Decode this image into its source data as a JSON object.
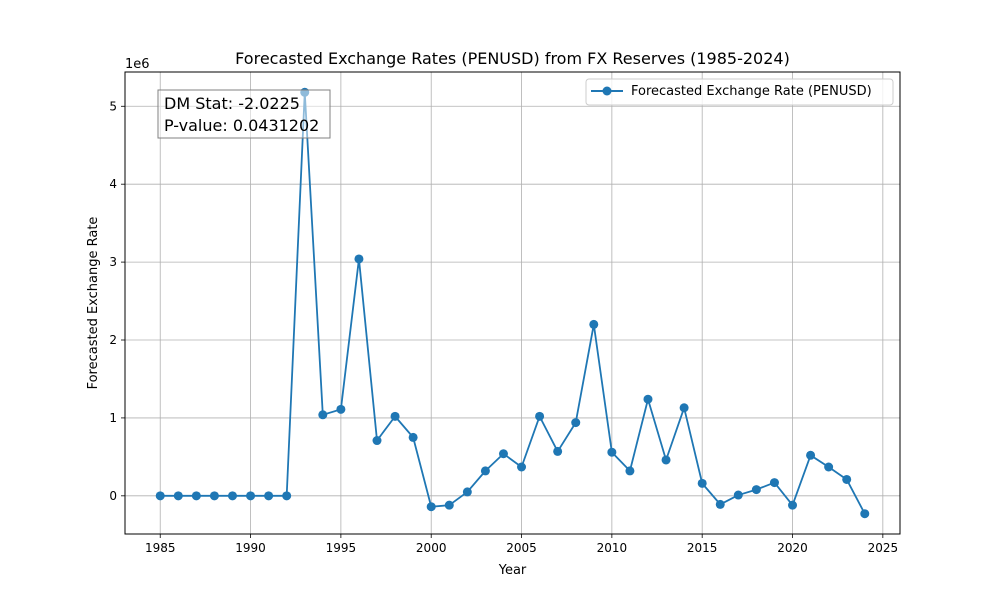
{
  "chart_data": {
    "type": "line",
    "title": "Forecasted Exchange Rates (PENUSD) from FX Reserves (1985-2024)",
    "xlabel": "Year",
    "ylabel": "Forecasted Exchange Rate",
    "y_offset_label": "1e6",
    "y_scale_factor": 1000000,
    "xlim": [
      1983.05,
      2025.95
    ],
    "ylim": [
      -490000,
      5440000
    ],
    "x_ticks": [
      1985,
      1990,
      1995,
      2000,
      2005,
      2010,
      2015,
      2020,
      2025
    ],
    "y_ticks": [
      0,
      1,
      2,
      3,
      4,
      5
    ],
    "grid": true,
    "legend_position": "top-right",
    "series": [
      {
        "name": "Forecasted Exchange Rate (PENUSD)",
        "color": "#1f77b4",
        "marker": "circle",
        "x": [
          1985,
          1986,
          1987,
          1988,
          1989,
          1990,
          1991,
          1992,
          1993,
          1994,
          1995,
          1996,
          1997,
          1998,
          1999,
          2000,
          2001,
          2002,
          2003,
          2004,
          2005,
          2006,
          2007,
          2008,
          2009,
          2010,
          2011,
          2012,
          2013,
          2014,
          2015,
          2016,
          2017,
          2018,
          2019,
          2020,
          2021,
          2022,
          2023,
          2024
        ],
        "y": [
          0,
          0,
          0,
          0,
          0,
          0,
          0,
          0,
          5180000,
          1040000,
          1110000,
          3040000,
          710000,
          1020000,
          750000,
          -140000,
          -120000,
          50000,
          320000,
          540000,
          370000,
          1020000,
          570000,
          940000,
          2200000,
          560000,
          320000,
          1240000,
          460000,
          1130000,
          160000,
          -110000,
          10000,
          80000,
          170000,
          -120000,
          520000,
          370000,
          210000,
          -230000
        ]
      }
    ],
    "annotation": {
      "lines": [
        "DM Stat: -2.0225",
        "P-value: 0.0431202"
      ]
    }
  }
}
